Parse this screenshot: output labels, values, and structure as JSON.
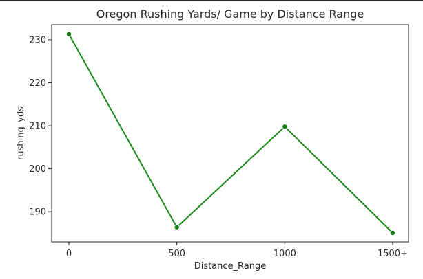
{
  "chart_data": {
    "type": "line",
    "title": "Oregon Rushing Yards/ Game by Distance Range",
    "xlabel": "Distance_Range",
    "ylabel": "rushing_yds",
    "categories": [
      "0",
      "500",
      "1000",
      "1500+"
    ],
    "series": [
      {
        "values": [
          231.3,
          186.4,
          209.8,
          185.1
        ]
      }
    ],
    "y_ticks": [
      190,
      200,
      210,
      220,
      230
    ],
    "ylim": [
      183.0,
      233.5
    ],
    "grid": false,
    "line_color": "#1a8a1a",
    "marker_color": "#158015"
  }
}
